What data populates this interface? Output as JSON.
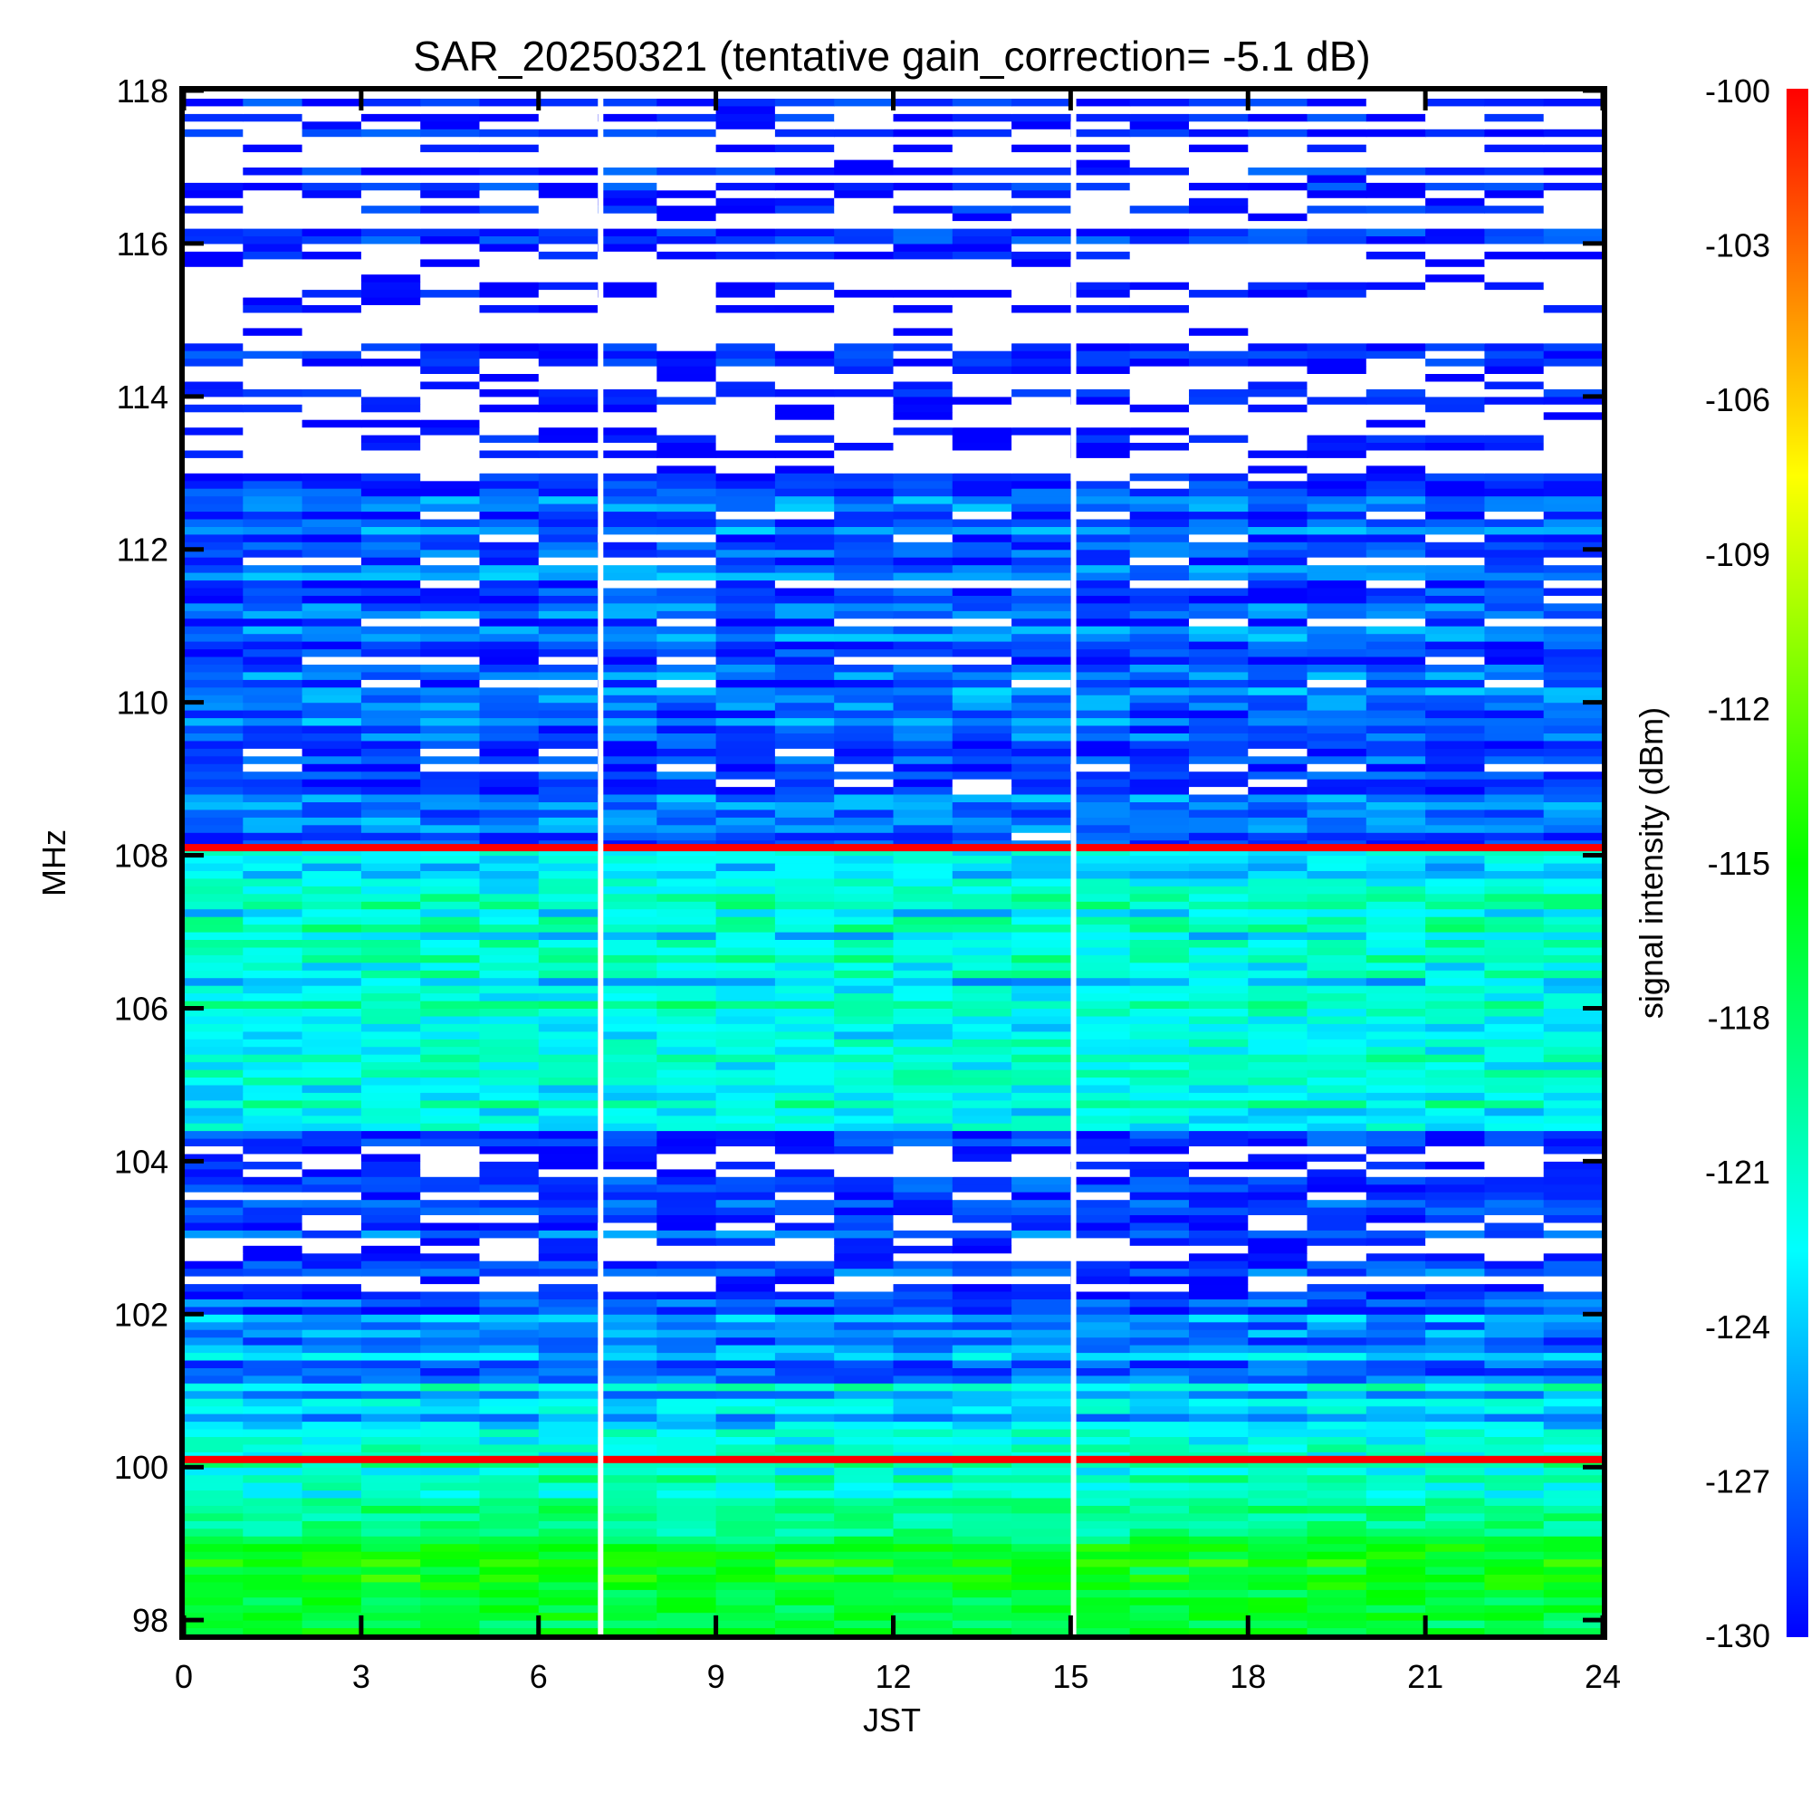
{
  "chart_data": {
    "type": "heatmap",
    "title": "SAR_20250321 (tentative gain_correction= -5.1 dB)",
    "xlabel": "JST",
    "ylabel": "MHz",
    "colorbar_label": "signal intensity (dBm)",
    "xlim": [
      0,
      24
    ],
    "ylim": [
      97.8,
      118
    ],
    "x_ticks": [
      0,
      3,
      6,
      9,
      12,
      15,
      18,
      21,
      24
    ],
    "y_ticks": [
      98,
      100,
      102,
      104,
      106,
      108,
      110,
      112,
      114,
      116,
      118
    ],
    "colorbar_range": [
      -130,
      -100
    ],
    "colorbar_ticks": [
      -100,
      -103,
      -106,
      -109,
      -112,
      -115,
      -118,
      -121,
      -124,
      -127,
      -130
    ],
    "colormap": [
      "#0000ff",
      "#00ffff",
      "#00ff00",
      "#ffff00",
      "#ff0000"
    ],
    "data_gaps_jst": [
      7.05,
      15.05
    ],
    "strong_bands_mhz": [
      {
        "freq": 108.1,
        "level": -100
      },
      {
        "freq": 100.1,
        "level": -100
      }
    ],
    "band_profile": [
      {
        "from": 97.8,
        "to": 98.9,
        "level": -117
      },
      {
        "from": 98.9,
        "to": 100.0,
        "level": -120
      },
      {
        "from": 100.0,
        "to": 101.0,
        "level": -123
      },
      {
        "from": 101.0,
        "to": 102.1,
        "level": -126
      },
      {
        "from": 102.1,
        "to": 104.3,
        "level": -129
      },
      {
        "from": 104.3,
        "to": 108.0,
        "level": -122
      },
      {
        "from": 108.0,
        "to": 112.8,
        "level": -128
      },
      {
        "from": 112.8,
        "to": 118.0,
        "level": -131
      }
    ],
    "grid": false,
    "legend": "colorbar-right"
  }
}
